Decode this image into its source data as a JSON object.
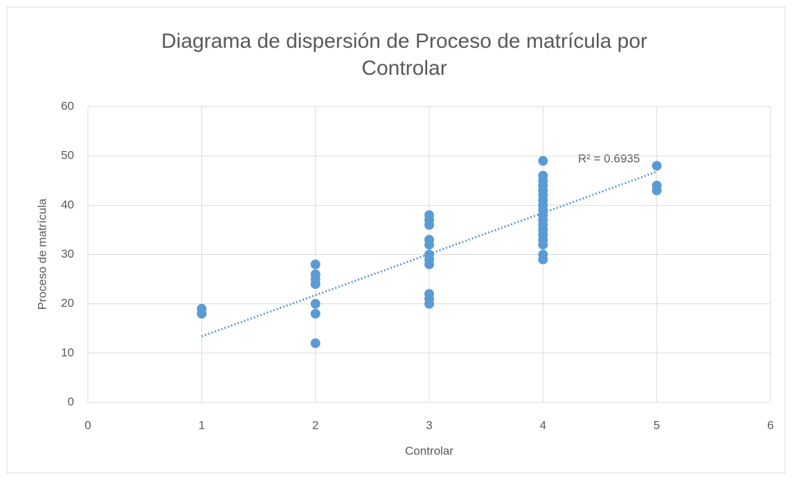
{
  "chart_data": {
    "type": "scatter",
    "title": "Diagrama de dispersión de Proceso de matrícula por Controlar",
    "x_label": "Controlar",
    "y_label": "Proceso de matrícula",
    "x": [
      1,
      1,
      2,
      2,
      2,
      2,
      2,
      2,
      2,
      3,
      3,
      3,
      3,
      3,
      3,
      3,
      3,
      3,
      3,
      3,
      4,
      4,
      4,
      4,
      4,
      4,
      4,
      4,
      4,
      4,
      4,
      4,
      4,
      4,
      4,
      4,
      4,
      4,
      5,
      5,
      5
    ],
    "values": [
      18,
      19,
      12,
      18,
      20,
      24,
      25,
      26,
      28,
      20,
      21,
      22,
      28,
      29,
      30,
      32,
      33,
      36,
      37,
      38,
      29,
      30,
      32,
      33,
      34,
      35,
      36,
      37,
      38,
      39,
      40,
      41,
      42,
      43,
      44,
      45,
      46,
      49,
      43,
      44,
      48
    ],
    "color": "#5b9bd5",
    "trendline": {
      "x": [
        1,
        5
      ],
      "values": [
        13.4,
        46.8
      ],
      "color": "#5b9bd5"
    },
    "annotation": "R² = 0.6935",
    "xlim": [
      0,
      6
    ],
    "xticks": [
      0,
      1,
      2,
      3,
      4,
      5,
      6
    ],
    "ylim": [
      0,
      60
    ],
    "yticks": [
      0,
      10,
      20,
      30,
      40,
      50,
      60
    ],
    "grid": true
  }
}
